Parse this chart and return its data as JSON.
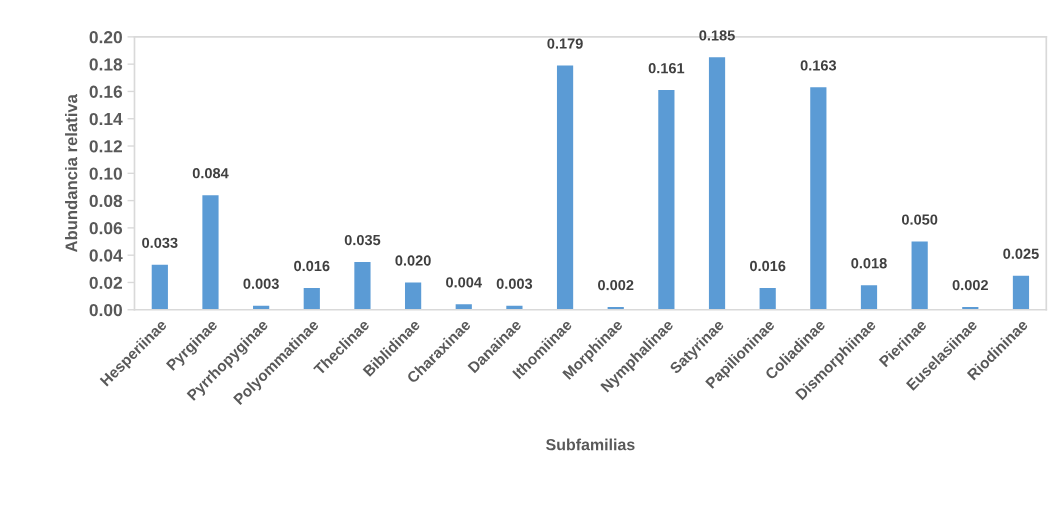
{
  "chart_data": {
    "type": "bar",
    "xlabel": "Subfamilias",
    "ylabel": "Abundancia relativa",
    "categories": [
      "Hesperiinae",
      "Pyrginae",
      "Pyrrhopyginae",
      "Polyommatinae",
      "Theclinae",
      "Biblidinae",
      "Charaxinae",
      "Danainae",
      "Ithomiinae",
      "Morphinae",
      "Nymphalinae",
      "Satyrinae",
      "Papilioninae",
      "Coliadinae",
      "Dismorphiinae",
      "Pierinae",
      "Euselasiinae",
      "Riodininae"
    ],
    "values": [
      0.033,
      0.084,
      0.003,
      0.016,
      0.035,
      0.02,
      0.004,
      0.003,
      0.179,
      0.002,
      0.161,
      0.185,
      0.016,
      0.163,
      0.018,
      0.05,
      0.002,
      0.025
    ],
    "value_labels": [
      "0.033",
      "0.084",
      "0.003",
      "0.016",
      "0.035",
      "0.020",
      "0.004",
      "0.003",
      "0.179",
      "0.002",
      "0.161",
      "0.185",
      "0.016",
      "0.163",
      "0.018",
      "0.050",
      "0.002",
      "0.025"
    ],
    "color": "#5b9bd5",
    "ylim": [
      0,
      0.2
    ],
    "yticks": [
      {
        "value": 0,
        "label": "0.00"
      },
      {
        "value": 0.02,
        "label": "0.02"
      },
      {
        "value": 0.04,
        "label": "0.04"
      },
      {
        "value": 0.06,
        "label": "0.06"
      },
      {
        "value": 0.08,
        "label": "0.08"
      },
      {
        "value": 0.1,
        "label": "0.10"
      },
      {
        "value": 0.12,
        "label": "0.12"
      },
      {
        "value": 0.14,
        "label": "0.14"
      },
      {
        "value": 0.16,
        "label": "0.16"
      },
      {
        "value": 0.18,
        "label": "0.18"
      },
      {
        "value": 0.2,
        "label": "0.20"
      }
    ],
    "grid": false
  }
}
